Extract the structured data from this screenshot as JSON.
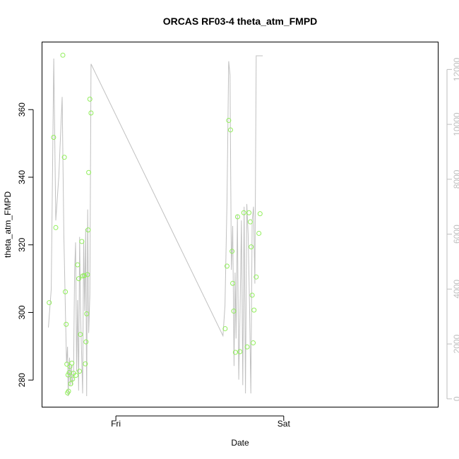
{
  "chart_data": {
    "type": "scatter",
    "title": "ORCAS RF03-4 theta_atm_FMPD",
    "xlabel": "Date",
    "ylabel": "theta_atm_FMPD",
    "x_ticks": [
      {
        "label": "Fri",
        "value": 1.0
      },
      {
        "label": "Sat",
        "value": 2.0
      }
    ],
    "xlim": [
      0.56,
      2.92
    ],
    "ylim": [
      272.0,
      380.0
    ],
    "y_ticks": [
      280,
      300,
      320,
      340,
      360
    ],
    "y2lim": [
      -300,
      13000
    ],
    "y2_ticks": [
      0,
      2000,
      4000,
      6000,
      8000,
      10000,
      12000
    ],
    "point_color": "#90ee5a",
    "line_color": "#c0c0c0",
    "axis_color_right": "#bebebe",
    "series": [
      {
        "kind": "points",
        "axis": "left",
        "x": [
          0.603,
          0.629,
          0.642,
          0.684,
          0.693,
          0.699,
          0.704,
          0.708,
          0.712,
          0.715,
          0.718,
          0.722,
          0.726,
          0.731,
          0.738,
          0.742,
          0.748,
          0.762,
          0.772,
          0.779,
          0.783,
          0.789,
          0.797,
          0.803,
          0.812,
          0.818,
          0.822,
          0.826,
          0.831,
          0.835,
          0.838,
          0.845,
          0.852,
          1.651,
          1.662,
          1.672,
          1.683,
          1.692,
          1.696,
          1.702,
          1.712,
          1.725,
          1.739,
          1.762,
          1.782,
          1.793,
          1.801,
          1.806,
          1.812,
          1.818,
          1.823,
          1.836,
          1.852,
          1.859
        ],
        "y": [
          302.9,
          351.8,
          325.1,
          376.1,
          345.9,
          306.1,
          296.5,
          284.7,
          276.2,
          281.5,
          276.7,
          282.2,
          284.0,
          278.9,
          285.0,
          280.3,
          282.0,
          281.4,
          314.1,
          310.0,
          282.6,
          293.5,
          321.0,
          310.8,
          310.9,
          284.8,
          291.3,
          299.6,
          311.2,
          324.4,
          341.4,
          363.1,
          359.0,
          295.2,
          313.7,
          356.8,
          354.0,
          318.1,
          308.6,
          300.4,
          288.2,
          328.3,
          288.4,
          329.5,
          289.8,
          329.5,
          326.8,
          319.4,
          305.1,
          291.0,
          300.7,
          310.5,
          323.4,
          329.2
        ]
      },
      {
        "kind": "line",
        "axis": "right",
        "x": [
          0.598,
          0.615,
          0.63,
          0.642,
          0.66,
          0.68,
          0.69,
          0.7,
          0.706,
          0.712,
          0.716,
          0.72,
          0.724,
          0.728,
          0.734,
          0.74,
          0.748,
          0.754,
          0.76,
          0.766,
          0.772,
          0.778,
          0.784,
          0.79,
          0.796,
          0.802,
          0.808,
          0.814,
          0.82,
          0.826,
          0.832,
          0.838,
          0.845,
          0.852,
          1.638,
          1.65,
          1.662,
          1.672,
          1.68,
          1.688,
          1.696,
          1.704,
          1.71,
          1.716,
          1.724,
          1.732,
          1.74,
          1.748,
          1.756,
          1.764,
          1.772,
          1.78,
          1.788,
          1.796,
          1.804,
          1.812,
          1.82,
          1.828,
          1.836,
          1.844,
          1.852,
          1.862,
          1.875
        ],
        "y": [
          2600,
          4000,
          12400,
          6500,
          8100,
          11000,
          6000,
          3000,
          1300,
          1900,
          100,
          1000,
          1500,
          500,
          1200,
          500,
          1000,
          4600,
          5700,
          1000,
          3600,
          300,
          5900,
          3000,
          1600,
          200,
          5800,
          3200,
          6200,
          100,
          6900,
          2400,
          3800,
          12200,
          2300,
          3400,
          7200,
          12300,
          11800,
          4700,
          6300,
          1200,
          4600,
          2200,
          6700,
          700,
          3300,
          6500,
          500,
          7000,
          200,
          7100,
          6000,
          3500,
          200,
          6500,
          7000,
          4200,
          12500,
          12500,
          12500,
          12500,
          12500
        ]
      }
    ]
  }
}
